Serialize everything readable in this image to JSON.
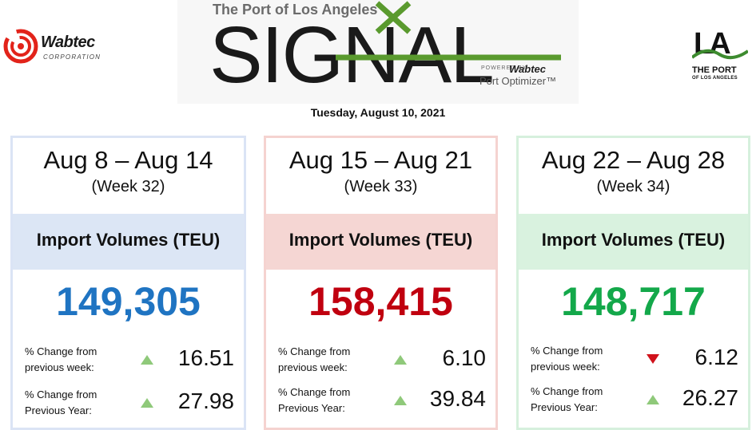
{
  "header": {
    "left_logo": {
      "name": "Wabtec",
      "subtitle": "CORPORATION"
    },
    "signal": {
      "kicker": "The Port of Los Angeles",
      "title": "SIGNAL",
      "powered_by": "POWERED BY",
      "powered_brand": "Wabtec",
      "product": "Port Optimizer™"
    },
    "right_logo": {
      "mark": "LA",
      "line1": "THE PORT",
      "line2": "OF LOS ANGELES"
    },
    "date": "Tuesday, August 10, 2021"
  },
  "colors": {
    "week32_value": "#1f74c2",
    "week33_value": "#c0000f",
    "week34_value": "#13a84a",
    "arrow_up": "#8fc97a",
    "arrow_down": "#d0121b"
  },
  "cards": [
    {
      "range": "Aug 8 – Aug 14",
      "week": "(Week 32)",
      "metric": "Import Volumes (TEU)",
      "value": "149,305",
      "rows": [
        {
          "label1": "% Change from",
          "label2": "previous week:",
          "direction": "up",
          "value": "16.51"
        },
        {
          "label1": "% Change from",
          "label2": "Previous Year:",
          "direction": "up",
          "value": "27.98"
        }
      ]
    },
    {
      "range": "Aug 15 – Aug 21",
      "week": "(Week 33)",
      "metric": "Import Volumes (TEU)",
      "value": "158,415",
      "rows": [
        {
          "label1": "% Change from",
          "label2": "previous week:",
          "direction": "up",
          "value": "6.10"
        },
        {
          "label1": "% Change from",
          "label2": "Previous Year:",
          "direction": "up",
          "value": "39.84"
        }
      ]
    },
    {
      "range": "Aug 22 – Aug 28",
      "week": "(Week 34)",
      "metric": "Import Volumes (TEU)",
      "value": "148,717",
      "rows": [
        {
          "label1": "% Change from",
          "label2": "previous week:",
          "direction": "down",
          "value": "6.12"
        },
        {
          "label1": "% Change from",
          "label2": "Previous Year:",
          "direction": "up",
          "value": "26.27"
        }
      ]
    }
  ]
}
